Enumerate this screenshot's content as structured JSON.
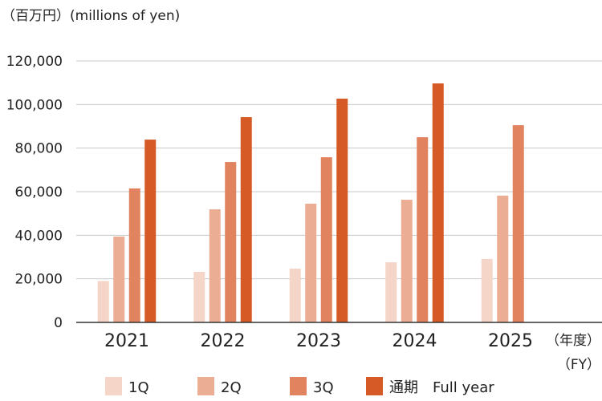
{
  "chart_data": {
    "type": "bar",
    "unit_label": "（百万円）(millions of yen)",
    "xlabel_line1": "（年度）",
    "xlabel_line2": "（FY）",
    "categories": [
      "2021",
      "2022",
      "2023",
      "2024",
      "2025"
    ],
    "ylim": [
      0,
      120000
    ],
    "yticks": [
      0,
      20000,
      40000,
      60000,
      80000,
      100000,
      120000
    ],
    "ytick_labels": [
      "0",
      "20,000",
      "40,000",
      "60,000",
      "80,000",
      "100,000",
      "120,000"
    ],
    "grid": true,
    "legend_placement": "bottom",
    "series": [
      {
        "name": "1Q",
        "color": "#f5d5c8",
        "values": [
          19000,
          23200,
          24700,
          27600,
          29100
        ]
      },
      {
        "name": "2Q",
        "color": "#ebae94",
        "values": [
          39400,
          51900,
          54500,
          56300,
          58200
        ]
      },
      {
        "name": "3Q",
        "color": "#e0835e",
        "values": [
          61500,
          73600,
          75800,
          85000,
          90500
        ]
      },
      {
        "name": "通期　Full year",
        "color": "#d65a26",
        "values": [
          83900,
          94200,
          102700,
          109700,
          null
        ]
      }
    ]
  }
}
